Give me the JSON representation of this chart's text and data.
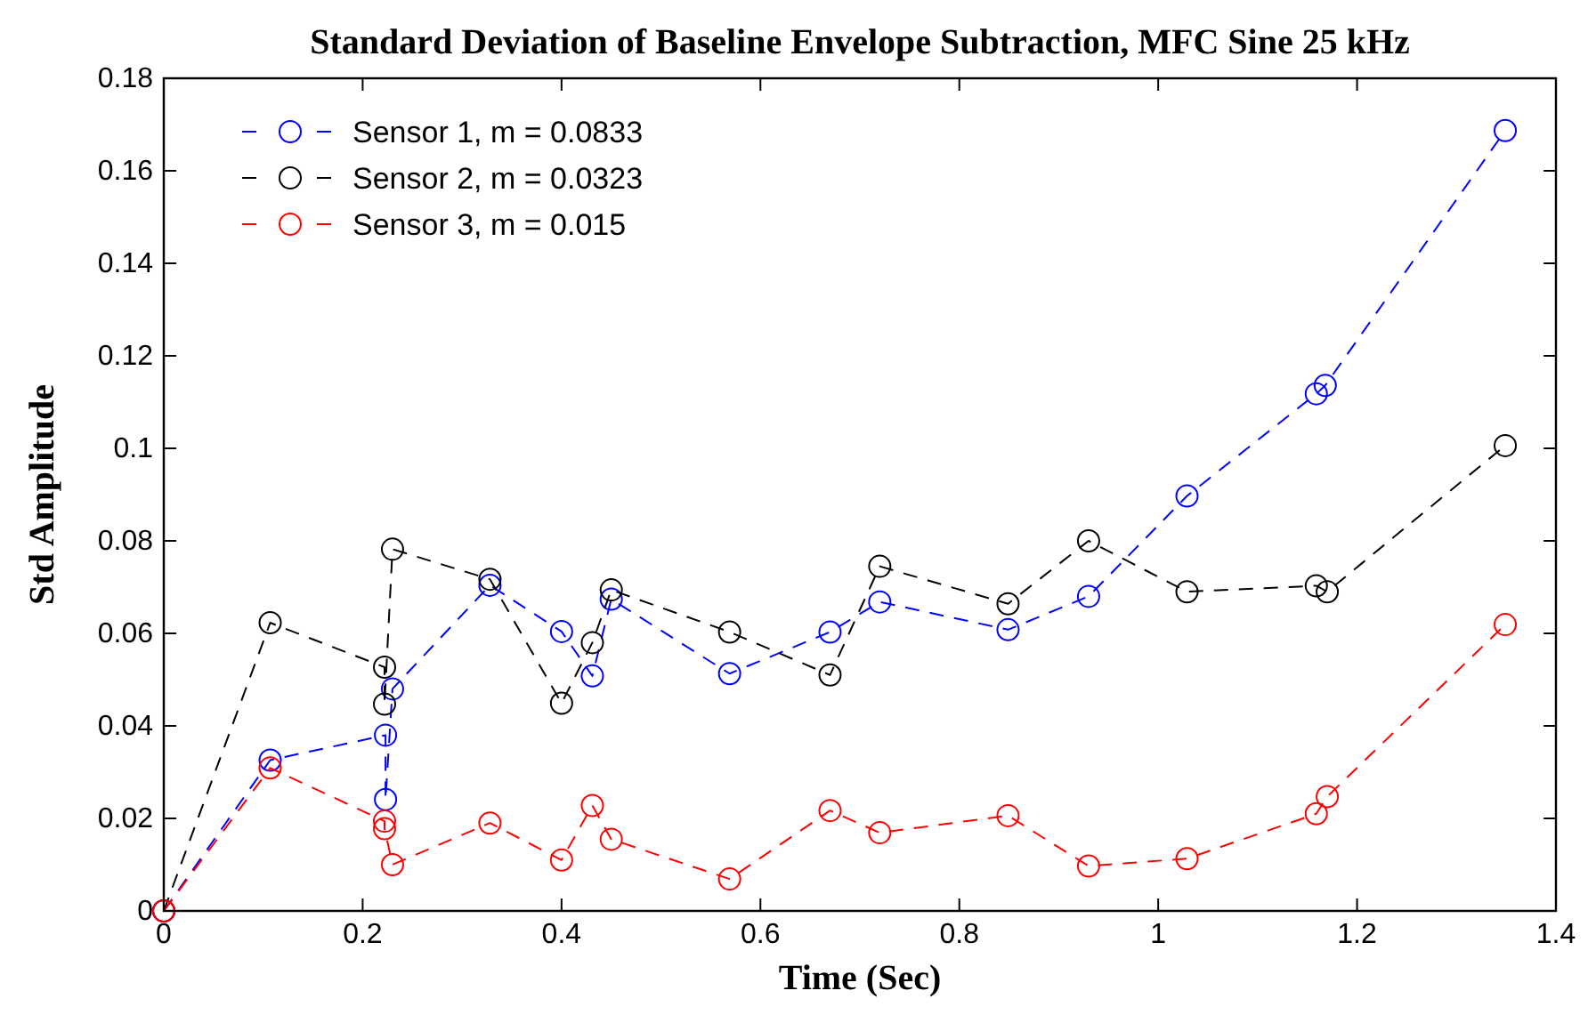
{
  "chart_data": {
    "type": "line",
    "title": "Standard Deviation of Baseline Envelope Subtraction, MFC Sine 25 kHz",
    "xlabel": "Time (Sec)",
    "ylabel": "Std Amplitude",
    "xlim": [
      0,
      1.4
    ],
    "xticks": [
      0,
      0.2,
      0.4,
      0.6,
      0.8,
      1,
      1.2,
      1.4
    ],
    "ylim": [
      0,
      0.18
    ],
    "yticks": [
      0,
      0.02,
      0.04,
      0.06,
      0.08,
      0.1,
      0.12,
      0.14,
      0.16,
      0.18
    ],
    "grid": false,
    "legend": "top left",
    "marker": "circle",
    "line_style": "dashed",
    "series": [
      {
        "name": "Sensor 1, m = 0.0833",
        "color": "#0000ff",
        "x": [
          0,
          0.107,
          0.223,
          0.223,
          0.23,
          0.328,
          0.4,
          0.431,
          0.45,
          0.569,
          0.67,
          0.72,
          0.849,
          0.93,
          1.029,
          1.159,
          1.168,
          1.349
        ],
        "values": [
          0,
          0.0326,
          0.038,
          0.0241,
          0.048,
          0.0704,
          0.0604,
          0.0508,
          0.0674,
          0.0513,
          0.0603,
          0.0668,
          0.0608,
          0.068,
          0.0897,
          0.1118,
          0.1136,
          0.1687
        ]
      },
      {
        "name": "Sensor 2, m = 0.0323",
        "color": "#000000",
        "x": [
          0,
          0.107,
          0.222,
          0.222,
          0.23,
          0.328,
          0.4,
          0.431,
          0.45,
          0.569,
          0.67,
          0.72,
          0.849,
          0.93,
          1.029,
          1.159,
          1.17,
          1.349
        ],
        "values": [
          0,
          0.0623,
          0.0527,
          0.0447,
          0.0782,
          0.0717,
          0.0449,
          0.058,
          0.0694,
          0.0603,
          0.051,
          0.0745,
          0.0664,
          0.08,
          0.069,
          0.0703,
          0.069,
          0.1006
        ]
      },
      {
        "name": "Sensor 3, m = 0.015",
        "color": "#ff0000",
        "x": [
          0,
          0.107,
          0.222,
          0.222,
          0.23,
          0.328,
          0.4,
          0.431,
          0.45,
          0.569,
          0.67,
          0.72,
          0.849,
          0.93,
          1.029,
          1.159,
          1.17,
          1.349
        ],
        "values": [
          0,
          0.0309,
          0.0194,
          0.0178,
          0.01,
          0.019,
          0.011,
          0.0228,
          0.0155,
          0.0069,
          0.0217,
          0.0169,
          0.0206,
          0.0097,
          0.0113,
          0.021,
          0.0247,
          0.0619
        ]
      }
    ]
  }
}
